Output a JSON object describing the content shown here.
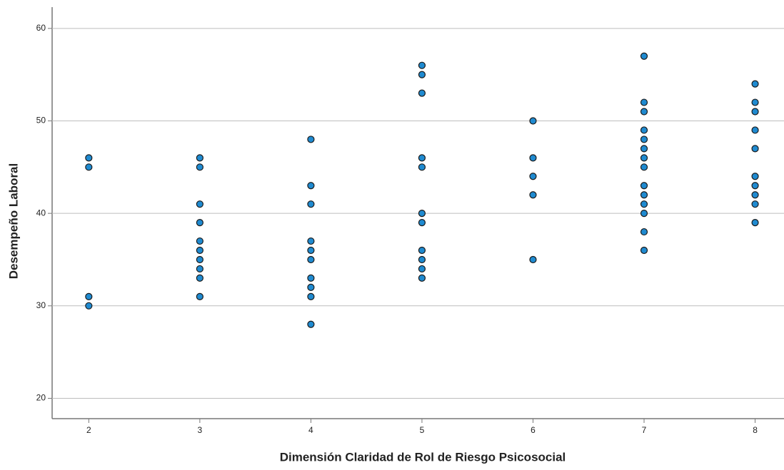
{
  "chart_data": {
    "type": "scatter",
    "x_label": "Dimensión Claridad de Rol de Riesgo Psicosocial",
    "y_label": "Desempeño Laboral",
    "x": [
      2,
      2,
      2,
      2,
      3,
      3,
      3,
      3,
      3,
      3,
      3,
      3,
      3,
      3,
      4,
      4,
      4,
      4,
      4,
      4,
      4,
      4,
      4,
      4,
      5,
      5,
      5,
      5,
      5,
      5,
      5,
      5,
      5,
      5,
      5,
      6,
      6,
      6,
      6,
      6,
      7,
      7,
      7,
      7,
      7,
      7,
      7,
      7,
      7,
      7,
      7,
      7,
      7,
      7,
      8,
      8,
      8,
      8,
      8,
      8,
      8,
      8,
      8,
      8
    ],
    "y": [
      46,
      45,
      31,
      30,
      46,
      45,
      41,
      39,
      37,
      36,
      35,
      34,
      33,
      31,
      48,
      43,
      41,
      37,
      36,
      35,
      33,
      32,
      31,
      28,
      56,
      55,
      53,
      46,
      45,
      40,
      39,
      36,
      35,
      34,
      33,
      50,
      46,
      44,
      42,
      35,
      57,
      52,
      51,
      49,
      48,
      47,
      46,
      45,
      43,
      42,
      41,
      40,
      38,
      36,
      54,
      52,
      51,
      49,
      47,
      44,
      43,
      42,
      41,
      39
    ],
    "color": "#1f8ad0",
    "xlim": [
      1.67,
      8.26
    ],
    "xticks": [
      2,
      3,
      4,
      5,
      6,
      7,
      8
    ],
    "ylim": [
      17.8,
      62.3
    ],
    "yticks": [
      20,
      30,
      40,
      50,
      60
    ],
    "grid": true
  }
}
